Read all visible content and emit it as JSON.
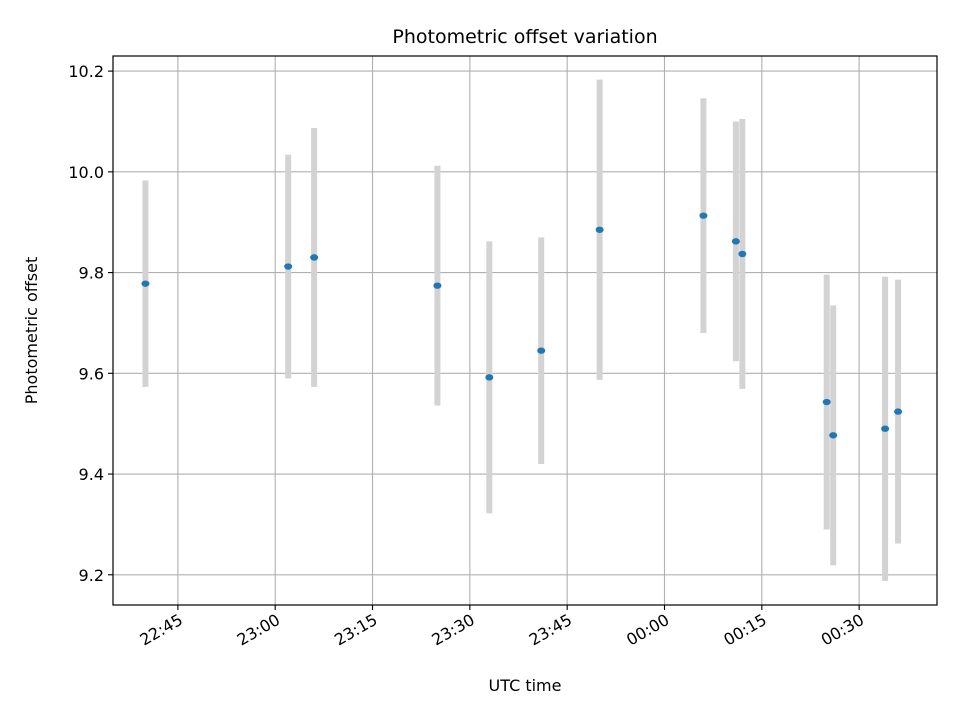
{
  "chart_data": {
    "type": "scatter",
    "title": "Photometric offset variation",
    "xlabel": "UTC time",
    "ylabel": "Photometric offset",
    "x_tick_labels": [
      "22:45",
      "23:00",
      "23:15",
      "23:30",
      "23:45",
      "00:00",
      "00:15",
      "00:30"
    ],
    "y_tick_labels": [
      "9.2",
      "9.4",
      "9.6",
      "9.8",
      "10.0",
      "10.2"
    ],
    "x_ticks_minutes_from_22_00": [
      45,
      60,
      75,
      90,
      105,
      120,
      135,
      150
    ],
    "y_ticks": [
      9.2,
      9.4,
      9.6,
      9.8,
      10.0,
      10.2
    ],
    "xlim_times": [
      "22:35",
      "00:42"
    ],
    "ylim": [
      9.14,
      10.23
    ],
    "grid": true,
    "colors": {
      "point": "#1f77b4",
      "errorbar": "#d3d3d3",
      "grid": "#b0b0b0"
    },
    "points": [
      {
        "t": "22:40",
        "y": 9.778,
        "yerr": 0.205
      },
      {
        "t": "23:02",
        "y": 9.812,
        "yerr": 0.222
      },
      {
        "t": "23:06",
        "y": 9.83,
        "yerr": 0.257
      },
      {
        "t": "23:25",
        "y": 9.774,
        "yerr": 0.238
      },
      {
        "t": "23:33",
        "y": 9.592,
        "yerr": 0.27
      },
      {
        "t": "23:41",
        "y": 9.645,
        "yerr": 0.225
      },
      {
        "t": "23:50",
        "y": 9.885,
        "yerr": 0.298
      },
      {
        "t": "00:06",
        "y": 9.913,
        "yerr": 0.233
      },
      {
        "t": "00:11",
        "y": 9.862,
        "yerr": 0.238
      },
      {
        "t": "00:12",
        "y": 9.837,
        "yerr": 0.268
      },
      {
        "t": "00:25",
        "y": 9.543,
        "yerr": 0.253
      },
      {
        "t": "00:26",
        "y": 9.477,
        "yerr": 0.258
      },
      {
        "t": "00:34",
        "y": 9.49,
        "yerr": 0.302
      },
      {
        "t": "00:36",
        "y": 9.524,
        "yerr": 0.262
      }
    ]
  }
}
